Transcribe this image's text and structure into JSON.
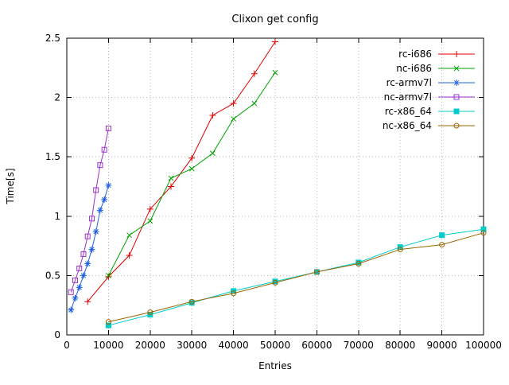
{
  "window": {
    "title": "Clixon get config"
  },
  "chart_data": {
    "type": "line",
    "title": "Clixon get config",
    "xlabel": "Entries",
    "ylabel": "Time[s]",
    "xlim": [
      0,
      100000
    ],
    "ylim": [
      0,
      2.5
    ],
    "xticks": [
      0,
      10000,
      20000,
      30000,
      40000,
      50000,
      60000,
      70000,
      80000,
      90000,
      100000
    ],
    "yticks": [
      0,
      0.5,
      1,
      1.5,
      2,
      2.5
    ],
    "ytick_labels": [
      "0",
      "0.5",
      "1",
      "1.5",
      "2",
      "2.5"
    ],
    "grid": true,
    "legend_position": "top-right-inside",
    "series": [
      {
        "name": "rc-i686",
        "color": "#e00000",
        "marker": "plus",
        "x": [
          5000,
          10000,
          15000,
          20000,
          25000,
          30000,
          35000,
          40000,
          45000,
          50000
        ],
        "y": [
          0.28,
          0.49,
          0.67,
          1.06,
          1.25,
          1.49,
          1.85,
          1.95,
          2.2,
          2.47
        ]
      },
      {
        "name": "nc-i686",
        "color": "#00a000",
        "marker": "cross",
        "x": [
          10000,
          15000,
          20000,
          25000,
          30000,
          35000,
          40000,
          45000,
          50000
        ],
        "y": [
          0.5,
          0.84,
          0.96,
          1.32,
          1.4,
          1.53,
          1.82,
          1.95,
          2.21
        ]
      },
      {
        "name": "rc-armv7l",
        "color": "#2060e0",
        "marker": "asterisk",
        "x": [
          1000,
          2000,
          3000,
          4000,
          5000,
          6000,
          7000,
          8000,
          9000,
          10000
        ],
        "y": [
          0.21,
          0.31,
          0.4,
          0.5,
          0.6,
          0.72,
          0.87,
          1.05,
          1.14,
          1.26
        ]
      },
      {
        "name": "nc-armv7l",
        "color": "#9933cc",
        "marker": "square-open",
        "x": [
          1000,
          2000,
          3000,
          4000,
          5000,
          6000,
          7000,
          8000,
          9000,
          10000
        ],
        "y": [
          0.36,
          0.46,
          0.56,
          0.68,
          0.83,
          0.98,
          1.22,
          1.43,
          1.56,
          1.74
        ]
      },
      {
        "name": "rc-x86_64",
        "color": "#00cccc",
        "marker": "square-filled",
        "x": [
          10000,
          20000,
          30000,
          40000,
          50000,
          60000,
          70000,
          80000,
          90000,
          100000
        ],
        "y": [
          0.08,
          0.17,
          0.27,
          0.37,
          0.45,
          0.53,
          0.61,
          0.74,
          0.84,
          0.89
        ]
      },
      {
        "name": "nc-x86_64",
        "color": "#996600",
        "marker": "circle-open",
        "x": [
          10000,
          20000,
          30000,
          40000,
          50000,
          60000,
          70000,
          80000,
          90000,
          100000
        ],
        "y": [
          0.11,
          0.19,
          0.28,
          0.35,
          0.44,
          0.53,
          0.6,
          0.72,
          0.76,
          0.86
        ]
      }
    ]
  }
}
